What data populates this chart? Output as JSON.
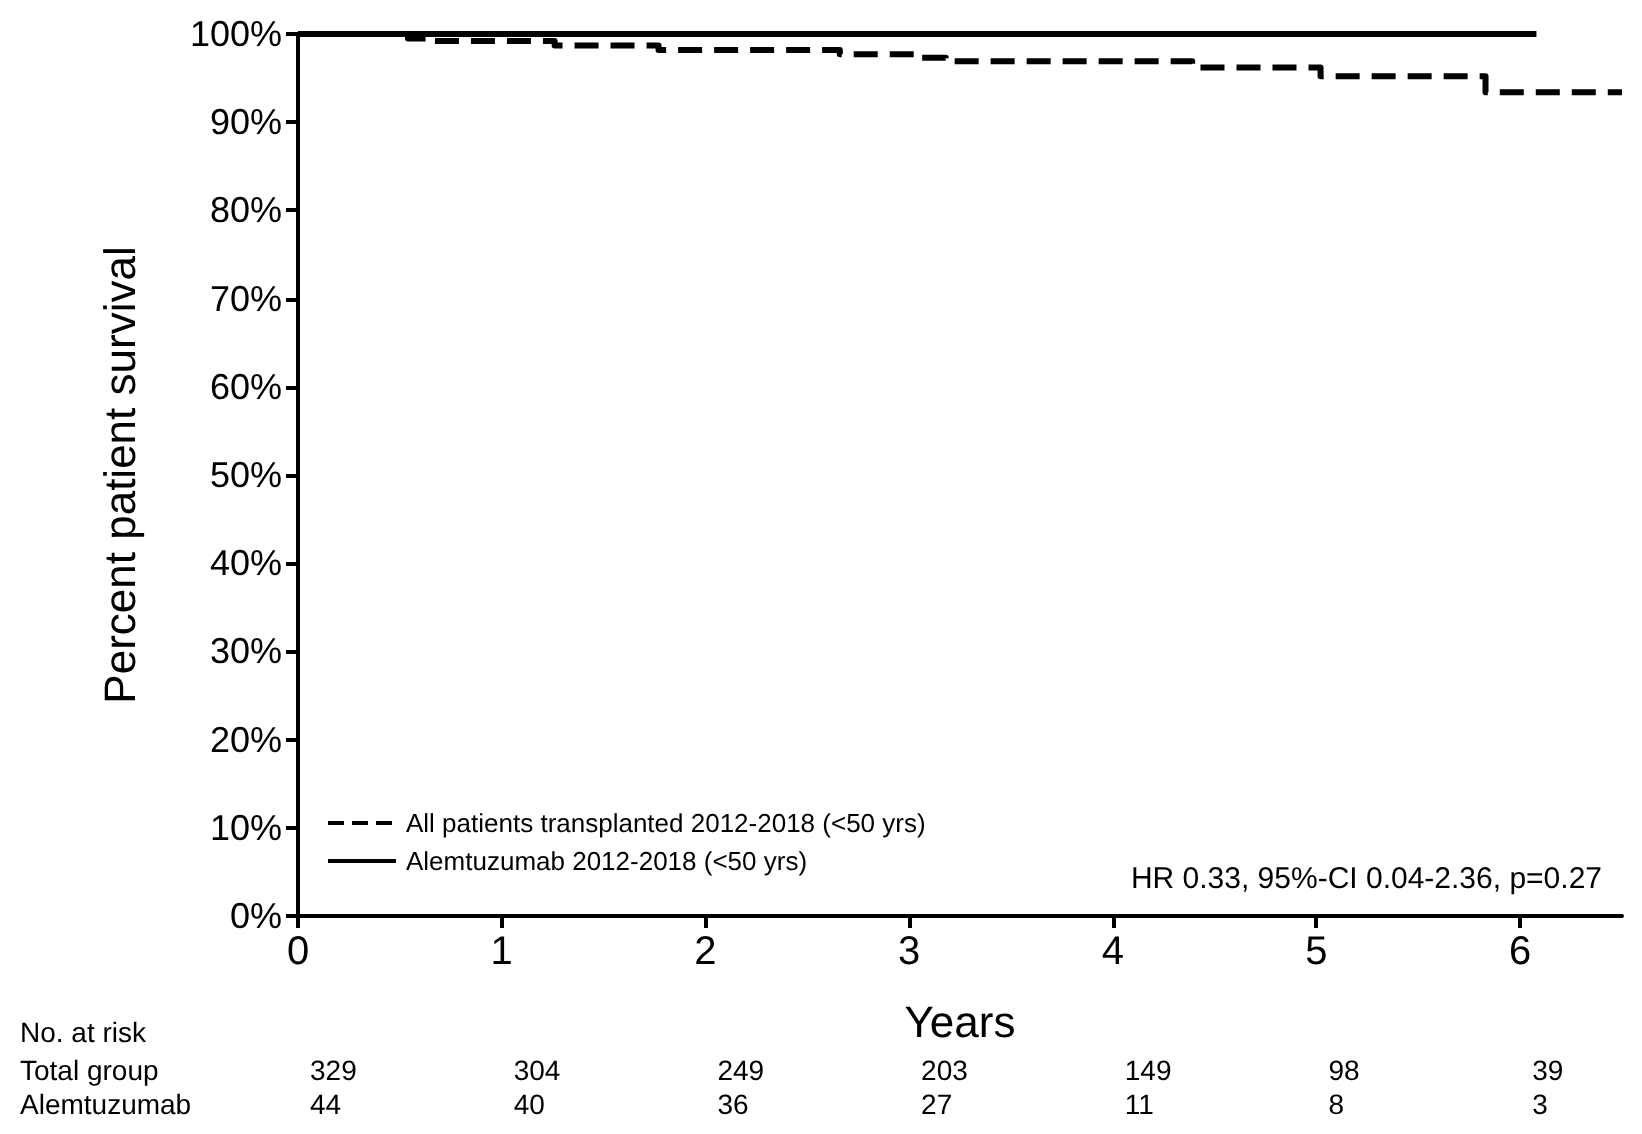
{
  "chart_data": {
    "type": "step",
    "xlabel": "Years",
    "ylabel": "Percent patient survival",
    "xlim": [
      0,
      6.5
    ],
    "xticks": [
      0,
      1,
      2,
      3,
      4,
      5,
      6
    ],
    "ylim": [
      0,
      100
    ],
    "yticks": [
      {
        "value": 0,
        "label": "0%"
      },
      {
        "value": 10,
        "label": "10%"
      },
      {
        "value": 20,
        "label": "20%"
      },
      {
        "value": 30,
        "label": "30%"
      },
      {
        "value": 40,
        "label": "40%"
      },
      {
        "value": 50,
        "label": "50%"
      },
      {
        "value": 60,
        "label": "60%"
      },
      {
        "value": 70,
        "label": "70%"
      },
      {
        "value": 80,
        "label": "80%"
      },
      {
        "value": 90,
        "label": "90%"
      },
      {
        "value": 100,
        "label": "100%"
      }
    ],
    "grid": false,
    "legend": "bottom left",
    "marker": "none",
    "series": [
      {
        "name": "All patients transplanted 2012-2018 (<50 yrs)",
        "color": "#000000",
        "line_style": "dashed",
        "x": [
          0,
          0.54,
          0.63,
          1.26,
          1.77,
          2.66,
          3.04,
          3.18,
          4.39,
          5.02,
          5.83,
          6.5
        ],
        "values": [
          100,
          99.5,
          99.2,
          98.7,
          98.2,
          97.7,
          97.3,
          96.9,
          96.2,
          95.2,
          93.4,
          93.4
        ]
      },
      {
        "name": "Alemtuzumab 2012-2018 (<50 yrs)",
        "color": "#000000",
        "line_style": "solid",
        "x": [
          0,
          6.08
        ],
        "values": [
          100,
          100
        ]
      }
    ],
    "annotations": [
      "HR 0.33, 95%-CI 0.04-2.36, p=0.27",
      "No. at risk",
      "Total group",
      "329",
      "304",
      "249",
      "203",
      "149",
      "98",
      "39",
      "Alemtuzumab",
      "44",
      "40",
      "36",
      "27",
      "11",
      "8",
      "3"
    ]
  }
}
